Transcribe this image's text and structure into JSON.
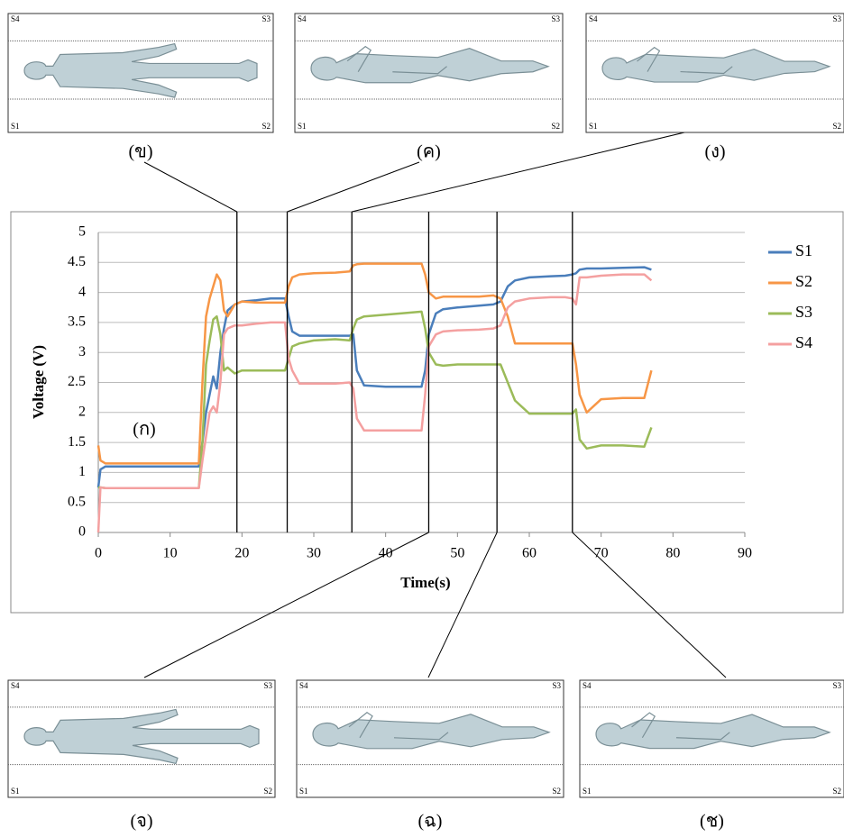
{
  "chart_data": {
    "type": "line",
    "y_label": "Voltage (V)",
    "x_label": "Time(s)",
    "annotation": "(ก)",
    "x": [
      0,
      0.3,
      1,
      5,
      10,
      14,
      14.5,
      15,
      15.5,
      16,
      16.5,
      17,
      17.5,
      18,
      19,
      20,
      22,
      24,
      26,
      26.5,
      27,
      28,
      30,
      33,
      35,
      35.5,
      36,
      37,
      40,
      43,
      45,
      45.5,
      46,
      47,
      48,
      50,
      53,
      55,
      56,
      57,
      58,
      60,
      63,
      65,
      66,
      66.5,
      67,
      68,
      70,
      73,
      76,
      77
    ],
    "series": [
      {
        "name": "S1",
        "color": "#4a7ebb",
        "values": [
          0.75,
          1.05,
          1.1,
          1.1,
          1.1,
          1.1,
          1.5,
          2.0,
          2.3,
          2.6,
          2.4,
          3.0,
          3.4,
          3.7,
          3.8,
          3.85,
          3.87,
          3.9,
          3.9,
          3.6,
          3.35,
          3.28,
          3.28,
          3.28,
          3.28,
          3.3,
          2.7,
          2.45,
          2.43,
          2.43,
          2.43,
          2.7,
          3.3,
          3.65,
          3.72,
          3.75,
          3.78,
          3.8,
          3.85,
          4.1,
          4.2,
          4.25,
          4.27,
          4.28,
          4.3,
          4.32,
          4.38,
          4.4,
          4.4,
          4.41,
          4.42,
          4.38
        ]
      },
      {
        "name": "S2",
        "color": "#f79646",
        "values": [
          1.45,
          1.2,
          1.15,
          1.15,
          1.15,
          1.15,
          2.5,
          3.6,
          3.9,
          4.1,
          4.3,
          4.2,
          3.7,
          3.6,
          3.8,
          3.85,
          3.83,
          3.83,
          3.83,
          4.1,
          4.25,
          4.3,
          4.32,
          4.33,
          4.35,
          4.45,
          4.47,
          4.48,
          4.48,
          4.48,
          4.48,
          4.3,
          4.0,
          3.9,
          3.93,
          3.93,
          3.93,
          3.95,
          3.9,
          3.6,
          3.15,
          3.15,
          3.15,
          3.15,
          3.15,
          2.8,
          2.3,
          2.0,
          2.22,
          2.24,
          2.24,
          2.7
        ]
      },
      {
        "name": "S3",
        "color": "#9bbb59",
        "values": [
          0.75,
          0.75,
          0.74,
          0.74,
          0.74,
          0.74,
          1.5,
          2.8,
          3.2,
          3.55,
          3.6,
          3.3,
          2.7,
          2.75,
          2.65,
          2.7,
          2.7,
          2.7,
          2.7,
          2.9,
          3.1,
          3.15,
          3.2,
          3.22,
          3.2,
          3.4,
          3.55,
          3.6,
          3.63,
          3.66,
          3.68,
          3.4,
          3.0,
          2.8,
          2.78,
          2.8,
          2.8,
          2.8,
          2.8,
          2.5,
          2.2,
          1.98,
          1.98,
          1.98,
          1.98,
          2.05,
          1.55,
          1.4,
          1.45,
          1.45,
          1.43,
          1.75
        ]
      },
      {
        "name": "S4",
        "color": "#f4a0a0",
        "values": [
          0,
          0.75,
          0.74,
          0.74,
          0.74,
          0.74,
          1.2,
          1.6,
          2.0,
          2.1,
          2.0,
          2.5,
          3.3,
          3.4,
          3.45,
          3.45,
          3.48,
          3.5,
          3.5,
          2.9,
          2.7,
          2.48,
          2.48,
          2.48,
          2.5,
          2.4,
          1.9,
          1.7,
          1.7,
          1.7,
          1.7,
          2.3,
          3.1,
          3.3,
          3.35,
          3.37,
          3.38,
          3.4,
          3.45,
          3.75,
          3.85,
          3.9,
          3.92,
          3.92,
          3.9,
          3.8,
          4.25,
          4.25,
          4.28,
          4.3,
          4.3,
          4.2
        ]
      }
    ],
    "markers": [
      19.3,
      26.3,
      35.3,
      46,
      55.5,
      66
    ],
    "xlim": [
      0,
      90
    ],
    "xticks": [
      0,
      10,
      20,
      30,
      40,
      50,
      60,
      70,
      80,
      90
    ],
    "ylim": [
      0,
      5
    ],
    "yticks": [
      0,
      0.5,
      1,
      1.5,
      2,
      2.5,
      3,
      3.5,
      4,
      4.5,
      5
    ],
    "grid": true,
    "legend": "right"
  },
  "panels": [
    {
      "label": "(ข)",
      "corners": [
        "S4",
        "S3",
        "S1",
        "S2"
      ]
    },
    {
      "label": "(ค)",
      "corners": [
        "S4",
        "S3",
        "S1",
        "S2"
      ]
    },
    {
      "label": "(ง)",
      "corners": [
        "S4",
        "S3",
        "S1",
        "S2"
      ]
    },
    {
      "label": "(จ)",
      "corners": [
        "S4",
        "S3",
        "S1",
        "S2"
      ]
    },
    {
      "label": "(ฉ)",
      "corners": [
        "S4",
        "S3",
        "S1",
        "S2"
      ]
    },
    {
      "label": "(ช)",
      "corners": [
        "S4",
        "S3",
        "S1",
        "S2"
      ]
    }
  ]
}
